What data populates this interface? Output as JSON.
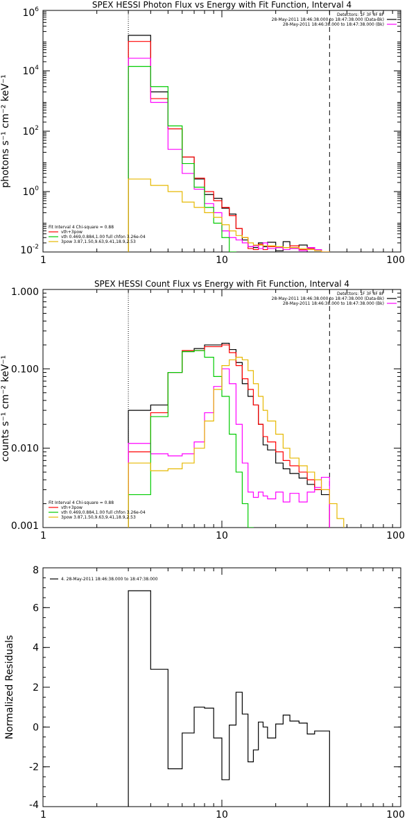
{
  "chart_data": [
    {
      "id": "photon",
      "type": "line",
      "title": "SPEX HESSI Photon Flux vs Energy with Fit Function, Interval 4",
      "xlabel": "",
      "ylabel": "photons s⁻¹ cm⁻² keV⁻¹",
      "xscale": "log",
      "yscale": "log",
      "xlim": [
        1,
        100
      ],
      "ylim": [
        0.01,
        1000000
      ],
      "xticks": [
        {
          "v": 1,
          "label": "1"
        },
        {
          "v": 10,
          "label": "10"
        },
        {
          "v": 100,
          "label": "100"
        }
      ],
      "yticks": [
        {
          "v": 0.01,
          "base": "10",
          "exp": "-2"
        },
        {
          "v": 1,
          "base": "10",
          "exp": "0"
        },
        {
          "v": 100,
          "base": "10",
          "exp": "2"
        },
        {
          "v": 10000,
          "base": "10",
          "exp": "4"
        },
        {
          "v": 1000000,
          "base": "10",
          "exp": "6"
        }
      ],
      "vlines": [
        {
          "x": 3,
          "style": "dotted"
        },
        {
          "x": 40,
          "style": "dashed"
        }
      ],
      "legend_right": [
        {
          "text": "Detectors: 1F 3F 4F 8F",
          "color": ""
        },
        {
          "text": "28-May-2011 18:46:38.000 to 18:47:38.000 (Data-Bk)",
          "color": "#000000"
        },
        {
          "text": "28-May-2011 18:46:38.000 to 18:47:38.000 (Bk)",
          "color": "#ff00ff"
        }
      ],
      "legend_left": [
        {
          "text": "Fit Interval 4   Chi-square = 0.88",
          "color": ""
        },
        {
          "text": "vth+3pow",
          "color": "#ff0000"
        },
        {
          "text": "vth 0.469,0.884,1.00  full chfon 3.26e-04",
          "color": "#00cc00"
        },
        {
          "text": "3pow 3.87,1.50,9.63,9.41,18.9,2.53",
          "color": "#e6b800"
        }
      ],
      "edges": [
        3,
        4,
        5,
        6,
        7,
        8,
        9,
        10,
        11,
        12,
        13,
        14,
        15,
        16,
        17,
        18,
        20,
        22,
        24,
        27,
        30,
        33,
        36,
        40
      ],
      "series": [
        {
          "name": "Data-Bk",
          "color": "#000000",
          "values": [
            150000.0,
            2000,
            120,
            14,
            2.6,
            0.8,
            0.6,
            0.28,
            0.18,
            0.06,
            0.025,
            0.015,
            0.014,
            0.02,
            0.015,
            0.021,
            0.011,
            0.022,
            0.014,
            0.017,
            0.014,
            0.012,
            0.008
          ]
        },
        {
          "name": "vth+3pow",
          "color": "#ff0000",
          "values": [
            94000.0,
            1200,
            120,
            14,
            2.8,
            1.0,
            0.5,
            0.3,
            0.16,
            0.06,
            0.03,
            0.013,
            0.012,
            0.018,
            0.012,
            0.015,
            0.014,
            0.014,
            0.016,
            0.012,
            0.013,
            0.012,
            0.009
          ]
        },
        {
          "name": "Bk",
          "color": "#ff00ff",
          "values": [
            26000.0,
            900,
            25,
            4,
            1.2,
            0.4,
            0.2,
            0.05,
            0.03,
            0.025,
            0.02,
            0.015,
            0.016,
            0.013,
            0.02,
            0.013,
            0.014,
            0.012,
            0.013,
            0.011,
            0.014,
            0.012,
            0.01
          ]
        },
        {
          "name": "vth",
          "color": "#00cc00",
          "values": [
            14000.0,
            3000,
            150,
            8.5,
            1.4,
            0.3,
            0.09,
            0.03,
            0.01
          ]
        },
        {
          "name": "3pow",
          "color": "#e6b800",
          "values": [
            2.6,
            1.6,
            1.0,
            0.45,
            0.3,
            0.2,
            0.14,
            0.08,
            0.05,
            0.035,
            0.03,
            0.02,
            0.017,
            0.017,
            0.016,
            0.016,
            0.015,
            0.014,
            0.014,
            0.013,
            0.012,
            0.011,
            0.01
          ]
        }
      ]
    },
    {
      "id": "count",
      "type": "line",
      "title": "SPEX HESSI Count Flux vs Energy with Fit Function, Interval 4",
      "xlabel": "",
      "ylabel": "counts s⁻¹ cm⁻² keV⁻¹",
      "xscale": "log",
      "yscale": "log",
      "xlim": [
        1,
        100
      ],
      "ylim": [
        0.001,
        1.0
      ],
      "xticks": [
        {
          "v": 1,
          "label": "1"
        },
        {
          "v": 10,
          "label": "10"
        },
        {
          "v": 100,
          "label": "100"
        }
      ],
      "yticks": [
        {
          "v": 0.001,
          "label": "0.001"
        },
        {
          "v": 0.01,
          "label": "0.010"
        },
        {
          "v": 0.1,
          "label": "0.100"
        },
        {
          "v": 1,
          "label": "1.000"
        }
      ],
      "vlines": [
        {
          "x": 3,
          "style": "dotted"
        },
        {
          "x": 40,
          "style": "dashed"
        }
      ],
      "legend_right": [
        {
          "text": "Detectors: 1F 3F 4F 8F",
          "color": ""
        },
        {
          "text": "28-May-2011 18:46:38.000 to 18:47:38.000 (Data-Bk)",
          "color": "#000000"
        },
        {
          "text": "28-May-2011 18:46:38.000 to 18:47:38.000 (Bk)",
          "color": "#ff00ff"
        }
      ],
      "legend_left": [
        {
          "text": "Fit Interval 4   Chi-square = 0.88",
          "color": ""
        },
        {
          "text": "vth+3pow",
          "color": "#ff0000"
        },
        {
          "text": "vth 0.469,0.884,1.00  full chfon 3.26e-04",
          "color": "#00cc00"
        },
        {
          "text": "3pow 3.87,1.50,9.63,9.41,18.9,2.53",
          "color": "#e6b800"
        }
      ],
      "edges": [
        3,
        4,
        5,
        6,
        7,
        8,
        9,
        10,
        11,
        12,
        13,
        14,
        15,
        16,
        17,
        18,
        20,
        22,
        24,
        27,
        30,
        33,
        36,
        40,
        44,
        48
      ],
      "series": [
        {
          "name": "Data-Bk",
          "color": "#000000",
          "values": [
            0.03,
            0.035,
            0.09,
            0.165,
            0.18,
            0.2,
            0.2,
            0.21,
            0.175,
            0.12,
            0.065,
            0.045,
            0.035,
            0.02,
            0.011,
            0.0095,
            0.0065,
            0.0055,
            0.0048,
            0.0042,
            0.0035,
            0.003,
            0.0026
          ]
        },
        {
          "name": "vth+3pow",
          "color": "#ff0000",
          "values": [
            0.009,
            0.028,
            0.09,
            0.17,
            0.17,
            0.19,
            0.19,
            0.2,
            0.16,
            0.11,
            0.075,
            0.055,
            0.035,
            0.02,
            0.014,
            0.012,
            0.009,
            0.007,
            0.006,
            0.005,
            0.004,
            0.003,
            0.003
          ]
        },
        {
          "name": "Bk",
          "color": "#ff00ff",
          "values": [
            0.0115,
            0.0085,
            0.008,
            0.0085,
            0.012,
            0.028,
            0.06,
            0.1,
            0.065,
            0.02,
            0.0065,
            0.0028,
            0.0024,
            0.0028,
            0.0025,
            0.0023,
            0.0028,
            0.0021,
            0.0027,
            0.0021,
            0.0028,
            0.0032,
            0.0043
          ]
        },
        {
          "name": "vth",
          "color": "#00cc00",
          "values": [
            0.0026,
            0.025,
            0.09,
            0.165,
            0.17,
            0.14,
            0.08,
            0.045,
            0.015,
            0.005,
            0.002,
            0.001
          ]
        },
        {
          "name": "3pow",
          "color": "#e6b800",
          "values": [
            0.0065,
            0.0052,
            0.0055,
            0.0065,
            0.01,
            0.022,
            0.055,
            0.11,
            0.13,
            0.14,
            0.13,
            0.095,
            0.065,
            0.045,
            0.03,
            0.022,
            0.015,
            0.01,
            0.0075,
            0.006,
            0.005,
            0.004,
            0.003,
            0.002,
            0.0013
          ]
        }
      ]
    },
    {
      "id": "residuals",
      "type": "line",
      "title": "",
      "xlabel": "",
      "ylabel": "Normalized Residuals",
      "xscale": "log",
      "yscale": "linear",
      "xlim": [
        1,
        100
      ],
      "ylim": [
        -4,
        8
      ],
      "xticks": [
        {
          "v": 1,
          "label": "1"
        },
        {
          "v": 10,
          "label": "10"
        },
        {
          "v": 100,
          "label": "100"
        }
      ],
      "yticks": [
        {
          "v": -4,
          "label": "-4"
        },
        {
          "v": -2,
          "label": "-2"
        },
        {
          "v": 0,
          "label": "0"
        },
        {
          "v": 2,
          "label": "2"
        },
        {
          "v": 4,
          "label": "4"
        },
        {
          "v": 6,
          "label": "6"
        },
        {
          "v": 8,
          "label": "8"
        }
      ],
      "vlines": [],
      "legend_top_left": [
        {
          "text": "4. 28-May-2011 18:46:38.000 to 18:47:38.000",
          "color": "#000000"
        }
      ],
      "edges": [
        3,
        4,
        5,
        6,
        7,
        8,
        9,
        10,
        11,
        12,
        13,
        14,
        15,
        16,
        17,
        18,
        20,
        22,
        24,
        27,
        30,
        33,
        36,
        40
      ],
      "series": [
        {
          "name": "4. 28-May-2011 18:46:38.000 to 18:47:38.000",
          "color": "#000000",
          "values": [
            6.85,
            2.9,
            -2.1,
            -0.3,
            1.0,
            0.95,
            -0.55,
            -2.65,
            0.1,
            1.75,
            0.65,
            -1.75,
            -1.15,
            0.25,
            0.0,
            -0.55,
            0.15,
            0.6,
            0.3,
            0.2,
            -0.35,
            -0.2,
            -0.2
          ]
        }
      ]
    }
  ]
}
